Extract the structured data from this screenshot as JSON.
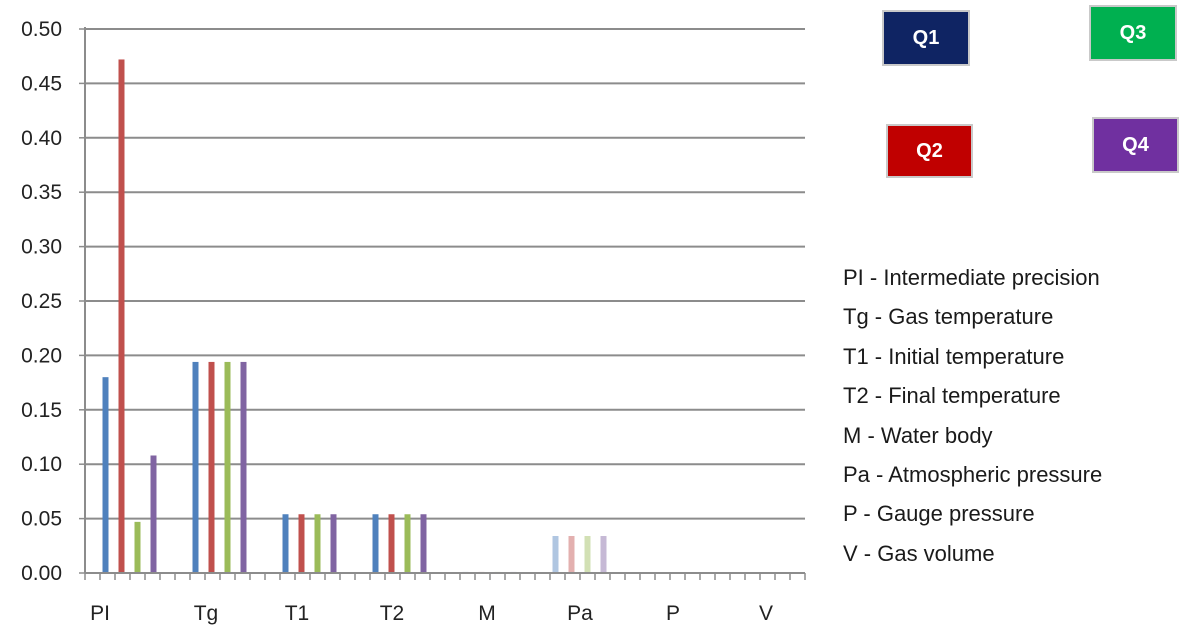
{
  "chart_data": {
    "type": "bar",
    "categories": [
      "PI",
      "Tg",
      "T1",
      "T2",
      "M",
      "Pa",
      "P",
      "V"
    ],
    "ylim": [
      0,
      0.5
    ],
    "y_ticks": [
      "0.00",
      "0.05",
      "0.10",
      "0.15",
      "0.20",
      "0.25",
      "0.30",
      "0.35",
      "0.40",
      "0.45",
      "0.50"
    ],
    "grid": true,
    "legend_placement": "top-right",
    "series": [
      {
        "name": "Q1",
        "color": "#4f81bd",
        "legend_color": "#0f2463",
        "values": [
          0.18,
          0.194,
          0.054,
          0.054,
          0.001,
          0.034,
          0,
          0
        ]
      },
      {
        "name": "Q2",
        "color": "#c0504d",
        "legend_color": "#c00000",
        "values": [
          0.472,
          0.194,
          0.054,
          0.054,
          0.001,
          0.034,
          0,
          0
        ]
      },
      {
        "name": "Q3",
        "color": "#9bbb59",
        "legend_color": "#00b050",
        "values": [
          0.047,
          0.194,
          0.054,
          0.054,
          0.001,
          0.034,
          0,
          0
        ]
      },
      {
        "name": "Q4",
        "color": "#8064a2",
        "legend_color": "#7030a0",
        "values": [
          0.108,
          0.194,
          0.054,
          0.054,
          0.001,
          0.034,
          0,
          0
        ]
      }
    ],
    "faded_categories": [
      "M",
      "Pa"
    ],
    "abbreviations": [
      "PI - Intermediate precision",
      "Tg - Gas temperature",
      "T1 - Initial temperature",
      "T2 - Final temperature",
      "M - Water body",
      "Pa - Atmospheric pressure",
      "P - Gauge pressure",
      "V - Gas volume"
    ]
  }
}
